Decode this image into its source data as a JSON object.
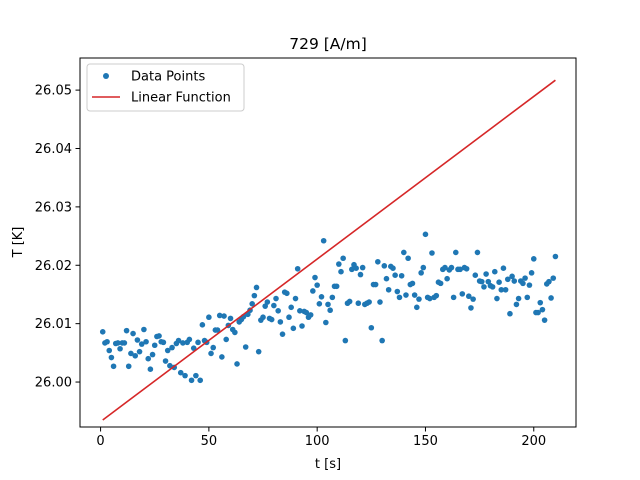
{
  "chart_data": {
    "type": "scatter",
    "title": "729 [A/m]",
    "xlabel": "t [s]",
    "ylabel": "T [K]",
    "xlim": [
      -9.5,
      219.5
    ],
    "ylim": [
      25.9923,
      26.0555
    ],
    "x_ticks": [
      0,
      50,
      100,
      150,
      200
    ],
    "y_ticks": [
      26.0,
      26.01,
      26.02,
      26.03,
      26.04,
      26.05
    ],
    "x_tick_labels": [
      "0",
      "50",
      "100",
      "150",
      "200"
    ],
    "y_tick_labels": [
      "26.00",
      "26.01",
      "26.02",
      "26.03",
      "26.04",
      "26.05"
    ],
    "grid": false,
    "legend_position": "top-left",
    "series": [
      {
        "name": "Data Points",
        "kind": "scatter",
        "color": "#1f77b4",
        "points": [
          [
            1,
            26.0086
          ],
          [
            2,
            26.0067
          ],
          [
            3,
            26.0069
          ],
          [
            4,
            26.0054
          ],
          [
            5,
            26.0042
          ],
          [
            6,
            26.0027
          ],
          [
            7,
            26.0066
          ],
          [
            8,
            26.0067
          ],
          [
            9,
            26.0057
          ],
          [
            10,
            26.0067
          ],
          [
            11,
            26.0067
          ],
          [
            12,
            26.0088
          ],
          [
            13,
            26.0027
          ],
          [
            14,
            26.0049
          ],
          [
            15,
            26.0083
          ],
          [
            16,
            26.0045
          ],
          [
            17,
            26.0072
          ],
          [
            18,
            26.0052
          ],
          [
            19,
            26.0065
          ],
          [
            20,
            26.009
          ],
          [
            21,
            26.0069
          ],
          [
            22,
            26.004
          ],
          [
            23,
            26.0022
          ],
          [
            24,
            26.0047
          ],
          [
            25,
            26.0063
          ],
          [
            26,
            26.0078
          ],
          [
            27,
            26.0079
          ],
          [
            28,
            26.0069
          ],
          [
            29,
            26.0068
          ],
          [
            30,
            26.0036
          ],
          [
            31,
            26.0054
          ],
          [
            32,
            26.0028
          ],
          [
            33,
            26.0059
          ],
          [
            34,
            26.0025
          ],
          [
            35,
            26.0066
          ],
          [
            36,
            26.0071
          ],
          [
            37,
            26.0016
          ],
          [
            38,
            26.0067
          ],
          [
            39,
            26.0011
          ],
          [
            40,
            26.0068
          ],
          [
            41,
            26.0073
          ],
          [
            42,
            26.0003
          ],
          [
            43,
            26.0058
          ],
          [
            44,
            26.0011
          ],
          [
            45,
            26.0068
          ],
          [
            46,
            26.0003
          ],
          [
            47,
            26.0098
          ],
          [
            48,
            26.0071
          ],
          [
            49,
            26.0068
          ],
          [
            50,
            26.0111
          ],
          [
            51,
            26.0049
          ],
          [
            52,
            26.0059
          ],
          [
            53,
            26.0089
          ],
          [
            54,
            26.0089
          ],
          [
            55,
            26.0114
          ],
          [
            56,
            26.0043
          ],
          [
            57,
            26.0113
          ],
          [
            58,
            26.0073
          ],
          [
            59,
            26.0097
          ],
          [
            60,
            26.0109
          ],
          [
            61,
            26.009
          ],
          [
            62,
            26.0085
          ],
          [
            63,
            26.0031
          ],
          [
            64,
            26.0103
          ],
          [
            65,
            26.0107
          ],
          [
            66,
            26.0112
          ],
          [
            67,
            26.006
          ],
          [
            68,
            26.0116
          ],
          [
            69,
            26.0123
          ],
          [
            70,
            26.0134
          ],
          [
            71,
            26.0148
          ],
          [
            72,
            26.0162
          ],
          [
            73,
            26.0052
          ],
          [
            74,
            26.0106
          ],
          [
            75,
            26.0111
          ],
          [
            76,
            26.013
          ],
          [
            77,
            26.0137
          ],
          [
            78,
            26.0109
          ],
          [
            79,
            26.0107
          ],
          [
            80,
            26.0131
          ],
          [
            81,
            26.0143
          ],
          [
            82,
            26.0122
          ],
          [
            83,
            26.0103
          ],
          [
            84,
            26.0082
          ],
          [
            85,
            26.0154
          ],
          [
            86,
            26.0152
          ],
          [
            87,
            26.0111
          ],
          [
            88,
            26.0128
          ],
          [
            89,
            26.0092
          ],
          [
            90,
            26.0143
          ],
          [
            91,
            26.0194
          ],
          [
            92,
            26.0122
          ],
          [
            93,
            26.0096
          ],
          [
            94,
            26.0121
          ],
          [
            95,
            26.0119
          ],
          [
            96,
            26.0111
          ],
          [
            97,
            26.0115
          ],
          [
            98,
            26.0156
          ],
          [
            99,
            26.0179
          ],
          [
            100,
            26.0166
          ],
          [
            101,
            26.0134
          ],
          [
            102,
            26.0146
          ],
          [
            103,
            26.0242
          ],
          [
            104,
            26.0102
          ],
          [
            105,
            26.0133
          ],
          [
            106,
            26.0123
          ],
          [
            107,
            26.0145
          ],
          [
            108,
            26.0164
          ],
          [
            109,
            26.0164
          ],
          [
            110,
            26.0202
          ],
          [
            111,
            26.0189
          ],
          [
            112,
            26.0212
          ],
          [
            113,
            26.0071
          ],
          [
            114,
            26.0135
          ],
          [
            115,
            26.0138
          ],
          [
            116,
            26.0193
          ],
          [
            117,
            26.0201
          ],
          [
            118,
            26.0195
          ],
          [
            119,
            26.0135
          ],
          [
            120,
            26.0184
          ],
          [
            121,
            26.0196
          ],
          [
            122,
            26.0133
          ],
          [
            123,
            26.0135
          ],
          [
            124,
            26.0137
          ],
          [
            125,
            26.0093
          ],
          [
            126,
            26.0167
          ],
          [
            127,
            26.0167
          ],
          [
            128,
            26.0206
          ],
          [
            129,
            26.0137
          ],
          [
            130,
            26.0071
          ],
          [
            131,
            26.0199
          ],
          [
            132,
            26.0177
          ],
          [
            133,
            26.0158
          ],
          [
            134,
            26.0198
          ],
          [
            135,
            26.0195
          ],
          [
            136,
            26.0183
          ],
          [
            137,
            26.0155
          ],
          [
            138,
            26.0145
          ],
          [
            139,
            26.0182
          ],
          [
            140,
            26.0222
          ],
          [
            141,
            26.0149
          ],
          [
            142,
            26.0212
          ],
          [
            143,
            26.0167
          ],
          [
            144,
            26.0169
          ],
          [
            145,
            26.0149
          ],
          [
            146,
            26.0128
          ],
          [
            147,
            26.0142
          ],
          [
            148,
            26.0187
          ],
          [
            149,
            26.0196
          ],
          [
            150,
            26.0253
          ],
          [
            151,
            26.0145
          ],
          [
            152,
            26.0143
          ],
          [
            153,
            26.0221
          ],
          [
            154,
            26.0145
          ],
          [
            155,
            26.0148
          ],
          [
            156,
            26.0171
          ],
          [
            157,
            26.0169
          ],
          [
            158,
            26.0193
          ],
          [
            159,
            26.0196
          ],
          [
            160,
            26.0177
          ],
          [
            161,
            26.0192
          ],
          [
            162,
            26.0196
          ],
          [
            163,
            26.0145
          ],
          [
            164,
            26.0222
          ],
          [
            165,
            26.0193
          ],
          [
            166,
            26.0193
          ],
          [
            167,
            26.0151
          ],
          [
            168,
            26.0196
          ],
          [
            169,
            26.0194
          ],
          [
            170,
            26.0147
          ],
          [
            171,
            26.0127
          ],
          [
            172,
            26.0142
          ],
          [
            173,
            26.0183
          ],
          [
            174,
            26.0222
          ],
          [
            175,
            26.0173
          ],
          [
            176,
            26.0172
          ],
          [
            177,
            26.0163
          ],
          [
            178,
            26.0185
          ],
          [
            179,
            26.0172
          ],
          [
            180,
            26.0165
          ],
          [
            181,
            26.0163
          ],
          [
            182,
            26.0189
          ],
          [
            183,
            26.0143
          ],
          [
            184,
            26.0171
          ],
          [
            185,
            26.0158
          ],
          [
            186,
            26.0195
          ],
          [
            187,
            26.0158
          ],
          [
            188,
            26.0176
          ],
          [
            189,
            26.0117
          ],
          [
            190,
            26.0181
          ],
          [
            191,
            26.0173
          ],
          [
            192,
            26.0133
          ],
          [
            193,
            26.0143
          ],
          [
            194,
            26.0173
          ],
          [
            195,
            26.0169
          ],
          [
            196,
            26.0178
          ],
          [
            197,
            26.0145
          ],
          [
            198,
            26.0166
          ],
          [
            199,
            26.0187
          ],
          [
            200,
            26.0211
          ],
          [
            201,
            26.0119
          ],
          [
            202,
            26.0119
          ],
          [
            203,
            26.0136
          ],
          [
            204,
            26.0124
          ],
          [
            205,
            26.0106
          ],
          [
            206,
            26.0168
          ],
          [
            207,
            26.0172
          ],
          [
            208,
            26.0144
          ],
          [
            209,
            26.0178
          ],
          [
            210,
            26.0215
          ]
        ]
      },
      {
        "name": "Linear Function",
        "kind": "line",
        "color": "#d62728",
        "points": [
          [
            1,
            25.9935
          ],
          [
            210,
            26.0517
          ]
        ]
      }
    ]
  }
}
